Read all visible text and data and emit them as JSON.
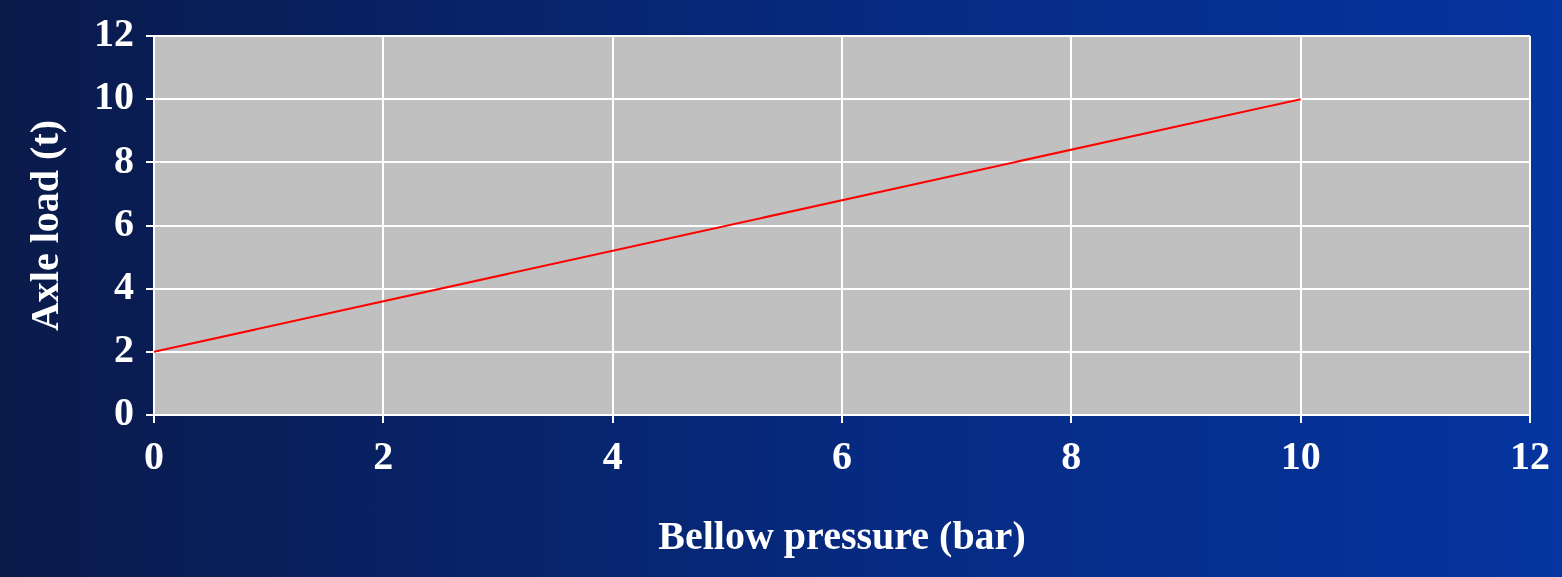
{
  "chart_data": {
    "type": "line",
    "xlabel": "Bellow pressure (bar)",
    "ylabel": "Axle load (t)",
    "x": [
      0,
      10
    ],
    "series": [
      {
        "color": "#ff0000",
        "values": [
          2,
          10
        ]
      }
    ],
    "xlim": [
      0,
      12
    ],
    "xticks": [
      0,
      2,
      4,
      6,
      8,
      10,
      12
    ],
    "ylim": [
      0,
      12
    ],
    "yticks": [
      0,
      2,
      4,
      6,
      8,
      10,
      12
    ],
    "grid": true,
    "legend": false,
    "marker": "none"
  }
}
